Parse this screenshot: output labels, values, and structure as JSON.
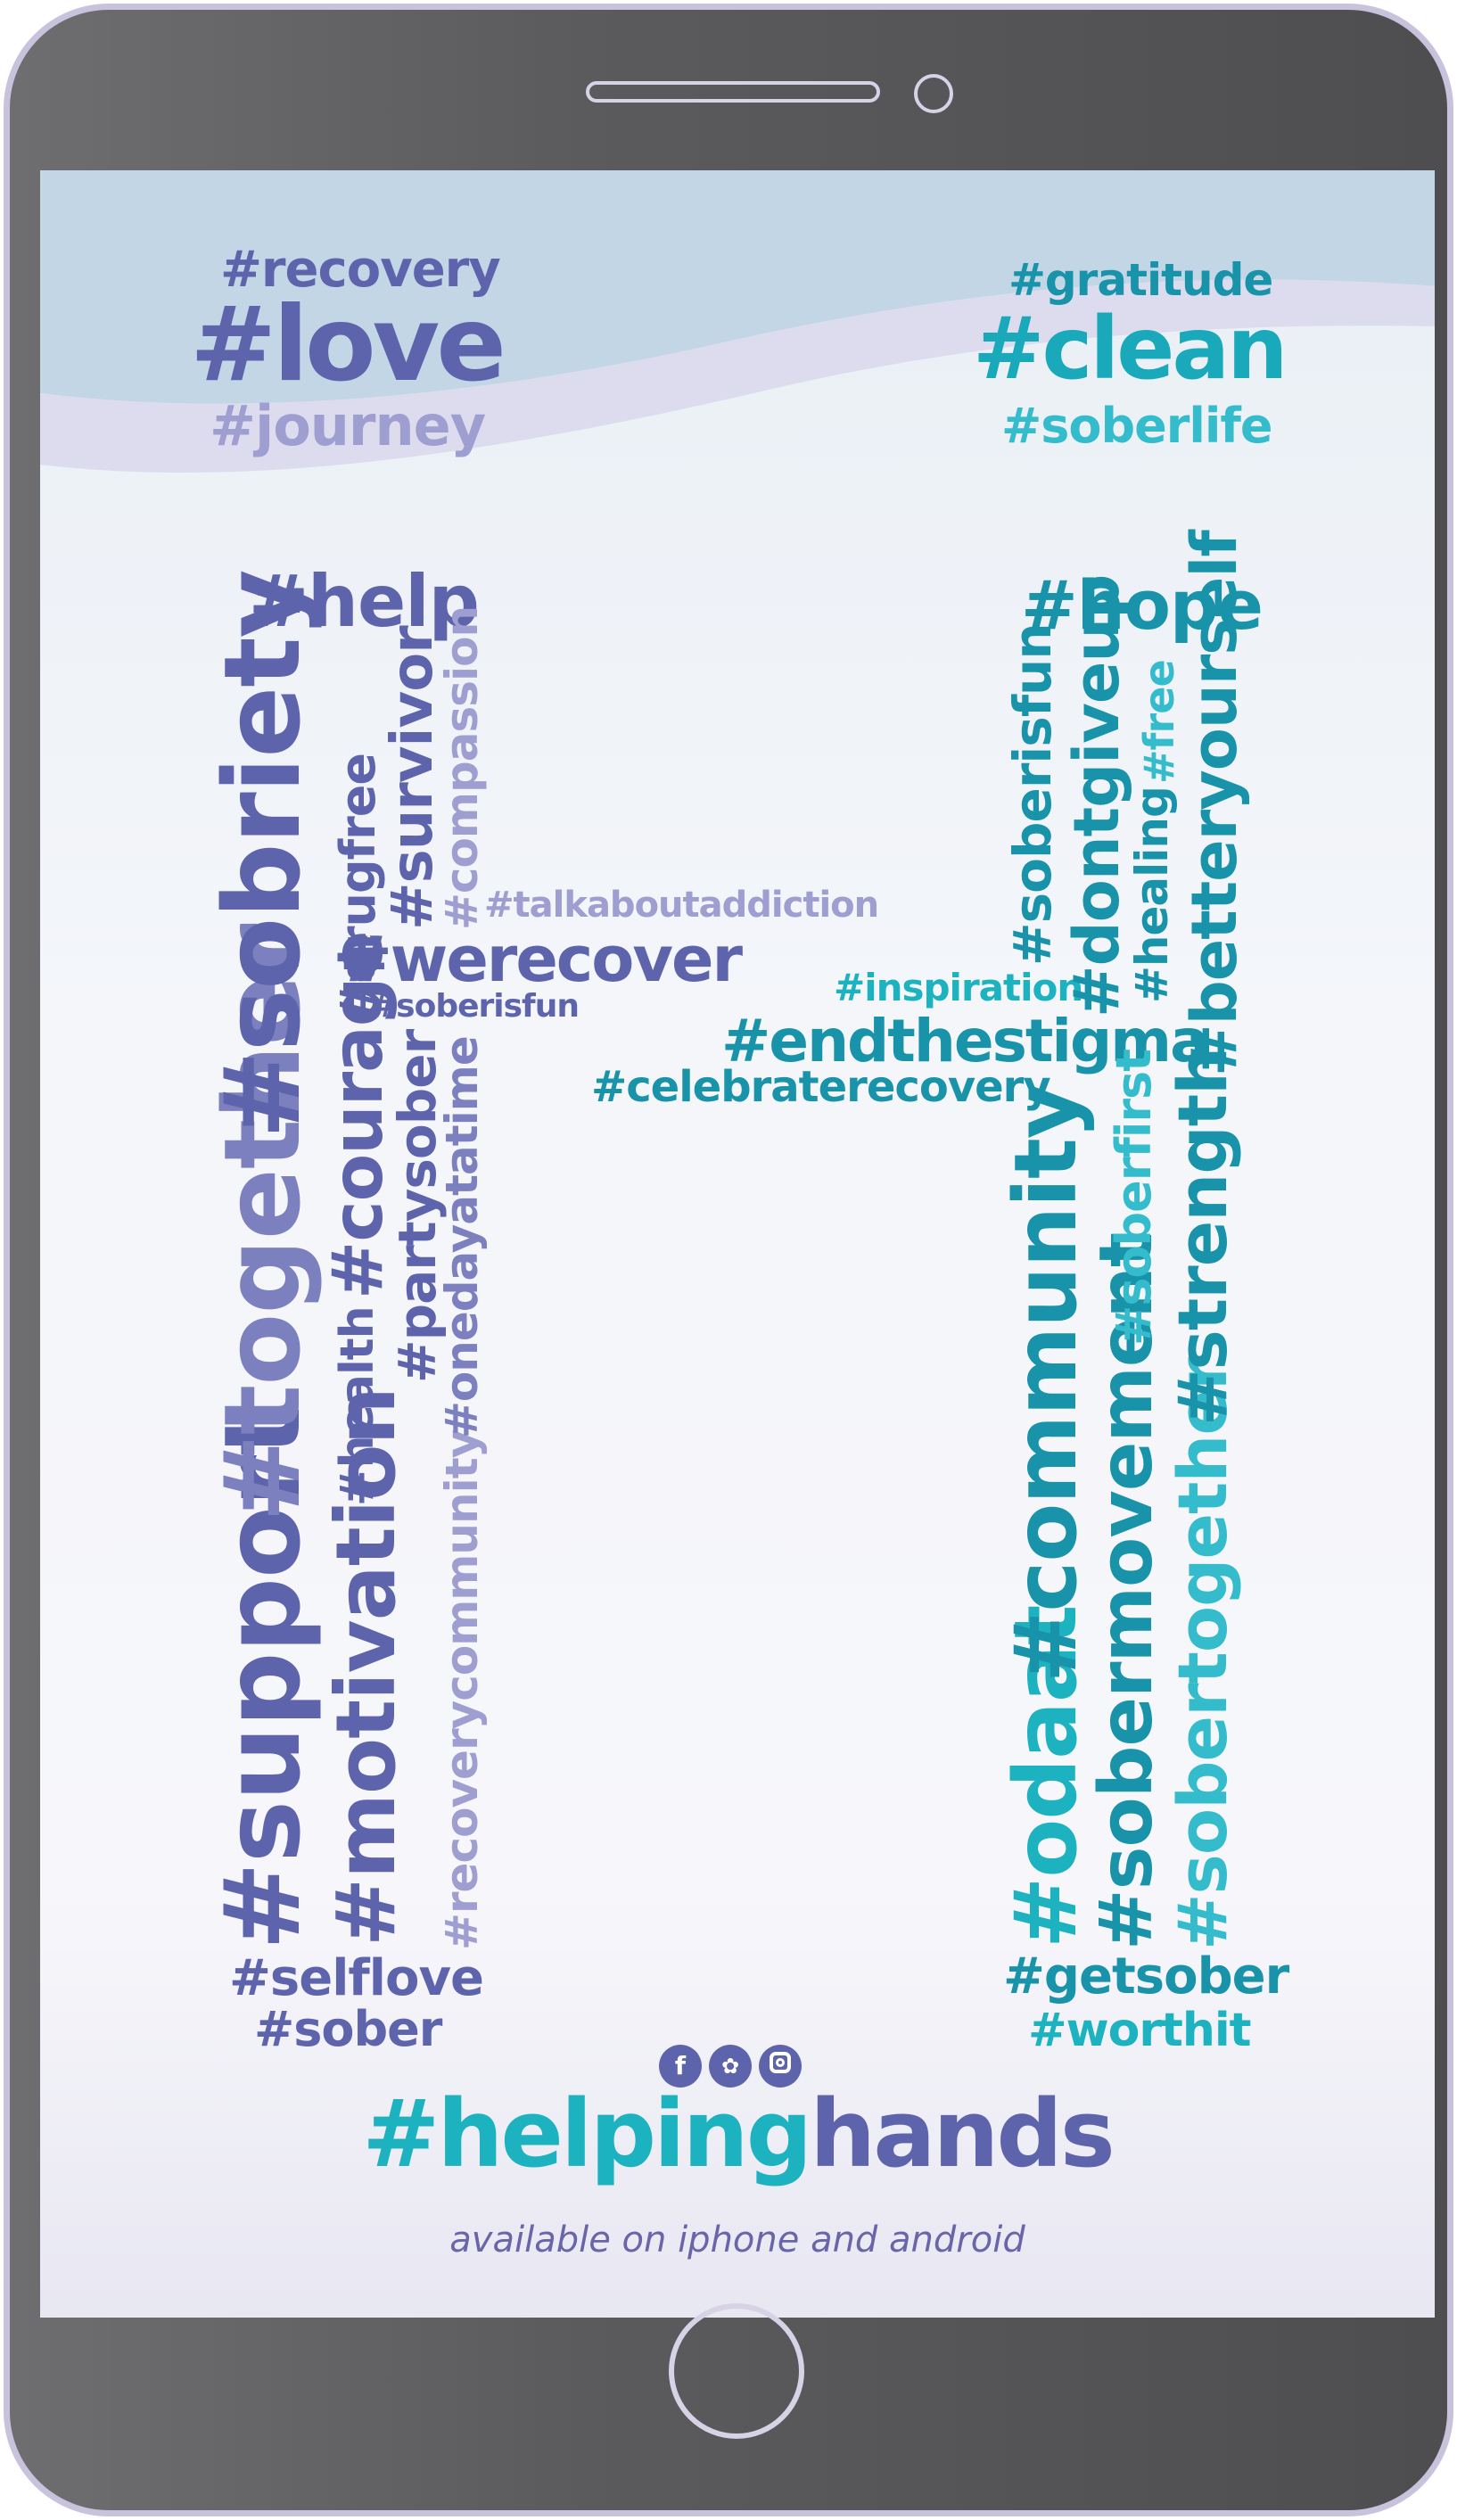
{
  "colors": {
    "indigo": "#5e64ac",
    "periwinkle": "#7d80bf",
    "lavender": "#9f9ed0",
    "teal": "#1db2bf",
    "deep_teal": "#1893a9",
    "cyan": "#35bccc",
    "navy_teal": "#2d78a4"
  },
  "top_left": {
    "recovery": "#recovery",
    "love": "#love",
    "journey": "#journey"
  },
  "top_right": {
    "gratitude": "#gratitude",
    "clean": "#clean",
    "soberlife": "#soberlife"
  },
  "left_column": {
    "help": "#help",
    "sobriety": "#sobriety",
    "together": "#together",
    "support": "#support",
    "drugfree": "#drugfree",
    "courage": "#courage",
    "health": "#health",
    "motivation": "#motivation",
    "survivor": "#survivor",
    "partysober": "#partysober",
    "compassion": "#compassion",
    "onedayatatime": "#onedayatatime",
    "recoverycommunity": "#recoverycommunity",
    "selflove": "#selflove",
    "sober": "#sober"
  },
  "crossbar": {
    "talkaboutaddiction": "#talkaboutaddiction",
    "werecover": "#werecover",
    "soberisfun": "#soberisfun",
    "inspiration": "#inspiration",
    "endthestigma": "#endthestigma",
    "celebraterecovery": "#celebraterecovery"
  },
  "right_column": {
    "hope": "#hope",
    "soberisfun": "#soberisfun",
    "dontgiveup": "#dontgiveup",
    "free": "#free",
    "healing": "#healing",
    "betteryourself": "#betteryourself",
    "community": "#community",
    "odaat": "#odaat",
    "soberfirst": "#soberfirst",
    "strength": "#strength",
    "sobermovement": "#sobermovement",
    "sobertogether": "#sobertogether",
    "getsober": "#getsober",
    "worthit": "#worthit"
  },
  "social_icons": [
    "facebook-icon",
    "twitter-icon",
    "instagram-icon"
  ],
  "brand": {
    "part1": "#helping",
    "part2": "hands"
  },
  "tagline": "available on iphone and android"
}
